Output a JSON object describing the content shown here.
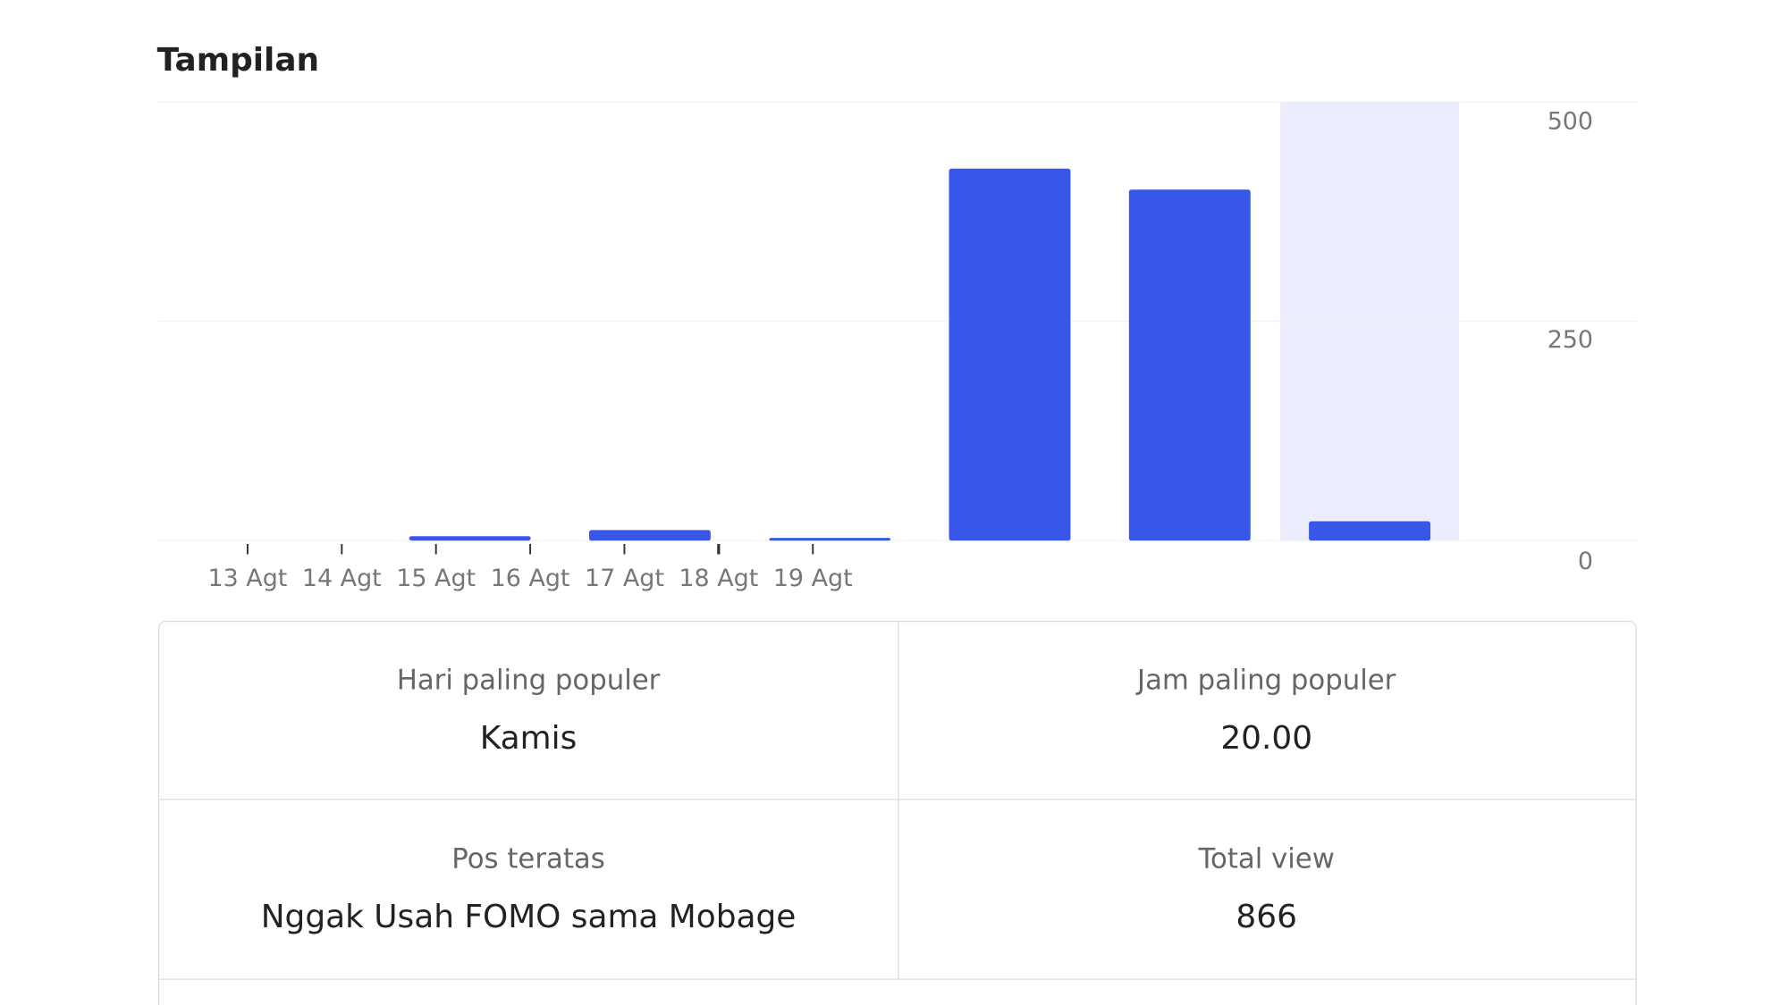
{
  "header": {
    "title": "Tampilan"
  },
  "chart_data": {
    "type": "bar",
    "categories": [
      "13 Agt",
      "14 Agt",
      "15 Agt",
      "16 Agt",
      "17 Agt",
      "18 Agt",
      "19 Agt"
    ],
    "values": [
      0,
      5,
      12,
      3,
      424,
      400,
      22
    ],
    "color": "#3857e8",
    "ylim": [
      0,
      500
    ],
    "yticks": [
      0,
      250,
      500
    ],
    "grid": true
  },
  "stats": [
    {
      "label": "Hari paling populer",
      "value": "Kamis"
    },
    {
      "label": "Jam paling populer",
      "value": "20.00"
    },
    {
      "label": "Pos teratas",
      "value": "Nggak Usah FOMO sama Mobage"
    },
    {
      "label": "Total view",
      "value": "866"
    }
  ]
}
